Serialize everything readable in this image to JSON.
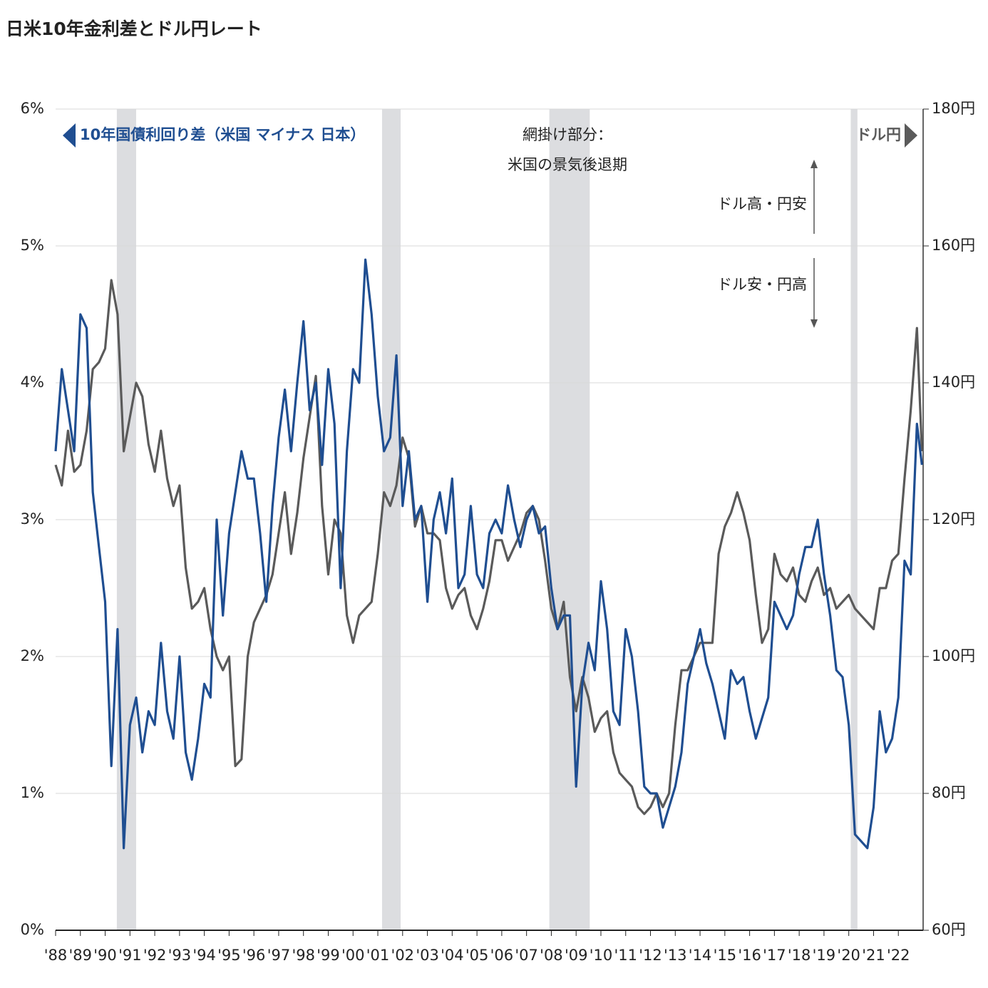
{
  "chart_data": {
    "type": "line",
    "title": "日米10年金利差とドル円レート",
    "x": [
      1988,
      1988.25,
      1988.5,
      1988.75,
      1989,
      1989.25,
      1989.5,
      1989.75,
      1990,
      1990.25,
      1990.5,
      1990.75,
      1991,
      1991.25,
      1991.5,
      1991.75,
      1992,
      1992.25,
      1992.5,
      1992.75,
      1993,
      1993.25,
      1993.5,
      1993.75,
      1994,
      1994.25,
      1994.5,
      1994.75,
      1995,
      1995.25,
      1995.5,
      1995.75,
      1996,
      1996.25,
      1996.5,
      1996.75,
      1997,
      1997.25,
      1997.5,
      1997.75,
      1998,
      1998.25,
      1998.5,
      1998.75,
      1999,
      1999.25,
      1999.5,
      1999.75,
      2000,
      2000.25,
      2000.5,
      2000.75,
      2001,
      2001.25,
      2001.5,
      2001.75,
      2002,
      2002.25,
      2002.5,
      2002.75,
      2003,
      2003.25,
      2003.5,
      2003.75,
      2004,
      2004.25,
      2004.5,
      2004.75,
      2005,
      2005.25,
      2005.5,
      2005.75,
      2006,
      2006.25,
      2006.5,
      2006.75,
      2007,
      2007.25,
      2007.5,
      2007.75,
      2008,
      2008.25,
      2008.5,
      2008.75,
      2009,
      2009.25,
      2009.5,
      2009.75,
      2010,
      2010.25,
      2010.5,
      2010.75,
      2011,
      2011.25,
      2011.5,
      2011.75,
      2012,
      2012.25,
      2012.5,
      2012.75,
      2013,
      2013.25,
      2013.5,
      2013.75,
      2014,
      2014.25,
      2014.5,
      2014.75,
      2015,
      2015.25,
      2015.5,
      2015.75,
      2016,
      2016.25,
      2016.5,
      2016.75,
      2017,
      2017.25,
      2017.5,
      2017.75,
      2018,
      2018.25,
      2018.5,
      2018.75,
      2019,
      2019.25,
      2019.5,
      2019.75,
      2020,
      2020.25,
      2020.5,
      2020.75,
      2021,
      2021.25,
      2021.5,
      2021.75,
      2022,
      2022.25,
      2022.5,
      2022.75,
      2022.95
    ],
    "series": [
      {
        "name": "10年国債利回り差（米国 マイナス 日本）",
        "color": "#1f4e91",
        "axis": "y",
        "values": [
          3.5,
          4.1,
          3.8,
          3.5,
          4.5,
          4.4,
          3.2,
          2.8,
          2.4,
          1.2,
          2.2,
          0.6,
          1.5,
          1.7,
          1.3,
          1.6,
          1.5,
          2.1,
          1.6,
          1.4,
          2.0,
          1.3,
          1.1,
          1.4,
          1.8,
          1.7,
          3.0,
          2.3,
          2.9,
          3.2,
          3.5,
          3.3,
          3.3,
          2.9,
          2.4,
          3.1,
          3.6,
          3.95,
          3.5,
          4.0,
          4.45,
          3.8,
          4.0,
          3.4,
          4.1,
          3.7,
          2.5,
          3.5,
          4.1,
          4.0,
          4.9,
          4.5,
          3.9,
          3.5,
          3.6,
          4.2,
          3.1,
          3.5,
          3.0,
          3.1,
          2.4,
          3.0,
          3.2,
          2.9,
          3.3,
          2.5,
          2.6,
          3.1,
          2.6,
          2.5,
          2.9,
          3.0,
          2.9,
          3.25,
          3.0,
          2.8,
          3.0,
          3.1,
          2.9,
          2.95,
          2.5,
          2.2,
          2.3,
          2.3,
          1.05,
          1.8,
          2.1,
          1.9,
          2.55,
          2.2,
          1.6,
          1.5,
          2.2,
          2.0,
          1.6,
          1.05,
          1.0,
          1.0,
          0.75,
          0.9,
          1.05,
          1.3,
          1.8,
          2.0,
          2.2,
          1.95,
          1.8,
          1.6,
          1.4,
          1.9,
          1.8,
          1.85,
          1.6,
          1.4,
          1.55,
          1.7,
          2.4,
          2.3,
          2.2,
          2.3,
          2.6,
          2.8,
          2.8,
          3.0,
          2.6,
          2.3,
          1.9,
          1.85,
          1.5,
          0.7,
          0.65,
          0.6,
          0.9,
          1.6,
          1.3,
          1.4,
          1.7,
          2.7,
          2.6,
          3.7,
          3.4
        ]
      },
      {
        "name": "ドル円",
        "color": "#5a5a5a",
        "axis": "y2",
        "values": [
          128,
          125,
          133,
          127,
          128,
          133,
          142,
          143,
          145,
          155,
          150,
          130,
          135,
          140,
          138,
          131,
          127,
          133,
          126,
          122,
          125,
          113,
          107,
          108,
          110,
          104,
          100,
          98,
          100,
          84,
          85,
          100,
          105,
          107,
          109,
          112,
          118,
          124,
          115,
          121,
          129,
          135,
          141,
          122,
          112,
          120,
          118,
          106,
          102,
          106,
          107,
          108,
          115,
          124,
          122,
          125,
          132,
          129,
          119,
          122,
          118,
          118,
          117,
          110,
          107,
          109,
          110,
          106,
          104,
          107,
          111,
          117,
          117,
          114,
          116,
          118,
          121,
          122,
          120,
          114,
          107,
          104,
          108,
          97,
          92,
          97,
          94,
          89,
          91,
          92,
          86,
          83,
          82,
          81,
          78,
          77,
          78,
          80,
          78,
          80,
          90,
          98,
          98,
          100,
          102,
          102,
          102,
          115,
          119,
          121,
          124,
          121,
          117,
          109,
          102,
          104,
          115,
          112,
          111,
          113,
          109,
          108,
          111,
          113,
          109,
          110,
          107,
          108,
          109,
          107,
          106,
          105,
          104,
          110,
          110,
          114,
          115,
          126,
          136,
          148,
          130
        ]
      }
    ],
    "xlim": [
      1988,
      2023
    ],
    "xticks": [
      {
        "value": 1988,
        "label": "'88"
      },
      {
        "value": 1989,
        "label": "'89"
      },
      {
        "value": 1990,
        "label": "'90"
      },
      {
        "value": 1991,
        "label": "'91"
      },
      {
        "value": 1992,
        "label": "'92"
      },
      {
        "value": 1993,
        "label": "'93"
      },
      {
        "value": 1994,
        "label": "'94"
      },
      {
        "value": 1995,
        "label": "'95"
      },
      {
        "value": 1996,
        "label": "'96"
      },
      {
        "value": 1997,
        "label": "'97"
      },
      {
        "value": 1998,
        "label": "'98"
      },
      {
        "value": 1999,
        "label": "'99"
      },
      {
        "value": 2000,
        "label": "'00"
      },
      {
        "value": 2001,
        "label": "'01"
      },
      {
        "value": 2002,
        "label": "'02"
      },
      {
        "value": 2003,
        "label": "'03"
      },
      {
        "value": 2004,
        "label": "'04"
      },
      {
        "value": 2005,
        "label": "'05"
      },
      {
        "value": 2006,
        "label": "'06"
      },
      {
        "value": 2007,
        "label": "'07"
      },
      {
        "value": 2008,
        "label": "'08"
      },
      {
        "value": 2009,
        "label": "'09"
      },
      {
        "value": 2010,
        "label": "'10"
      },
      {
        "value": 2011,
        "label": "'11"
      },
      {
        "value": 2012,
        "label": "'12"
      },
      {
        "value": 2013,
        "label": "'13"
      },
      {
        "value": 2014,
        "label": "'14"
      },
      {
        "value": 2015,
        "label": "'15"
      },
      {
        "value": 2016,
        "label": "'16"
      },
      {
        "value": 2017,
        "label": "'17"
      },
      {
        "value": 2018,
        "label": "'18"
      },
      {
        "value": 2019,
        "label": "'19"
      },
      {
        "value": 2020,
        "label": "'20"
      },
      {
        "value": 2021,
        "label": "'21"
      },
      {
        "value": 2022,
        "label": "'22"
      }
    ],
    "ylim": [
      0,
      6
    ],
    "yticks": [
      {
        "value": 0,
        "label": "0%"
      },
      {
        "value": 1,
        "label": "1%"
      },
      {
        "value": 2,
        "label": "2%"
      },
      {
        "value": 3,
        "label": "3%"
      },
      {
        "value": 4,
        "label": "4%"
      },
      {
        "value": 5,
        "label": "5%"
      },
      {
        "value": 6,
        "label": "6%"
      }
    ],
    "y2lim": [
      60,
      180
    ],
    "y2ticks": [
      {
        "value": 60,
        "label": "60円"
      },
      {
        "value": 80,
        "label": "80円"
      },
      {
        "value": 100,
        "label": "100円"
      },
      {
        "value": 120,
        "label": "120円"
      },
      {
        "value": 140,
        "label": "140円"
      },
      {
        "value": 160,
        "label": "160円"
      },
      {
        "value": 180,
        "label": "180円"
      }
    ],
    "grid": true,
    "shading": [
      [
        1990.47,
        1991.25
      ],
      [
        2001.17,
        2001.92
      ],
      [
        2007.92,
        2009.55
      ],
      [
        2020.08,
        2020.35
      ]
    ],
    "shading_color": "#dcdde0",
    "annotations": [
      "網掛け部分：",
      "米国の景気後退期",
      "ドル高・円安",
      "ドル安・円高"
    ]
  }
}
